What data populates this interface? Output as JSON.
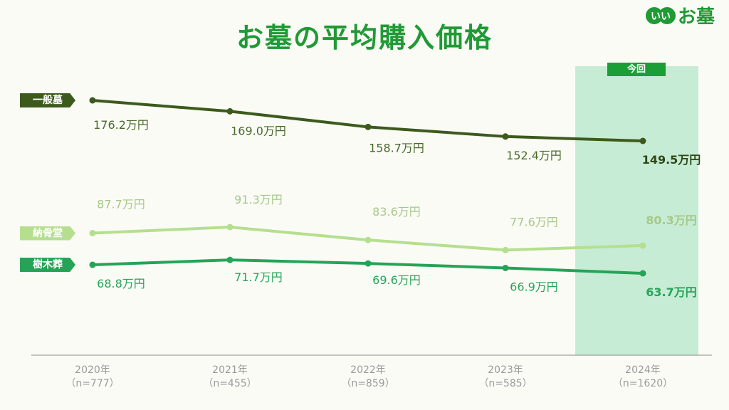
{
  "chart_data": {
    "type": "line",
    "title": "お墓の平均購入価格",
    "categories": [
      "2020年",
      "2021年",
      "2022年",
      "2023年",
      "2024年"
    ],
    "sample_sizes": [
      "（n=777）",
      "（n=455）",
      "（n=859）",
      "（n=585）",
      "（n=1620）"
    ],
    "value_unit": "万円",
    "highlight": {
      "category": "2024年",
      "label": "今回"
    },
    "grid": false,
    "series": [
      {
        "name": "一般墓",
        "values": [
          176.2,
          169.0,
          158.7,
          152.4,
          149.5
        ],
        "labels": [
          "176.2万円",
          "169.0万円",
          "158.7万円",
          "152.4万円",
          "149.5万円"
        ],
        "color": "#3d5a1d",
        "label_color": "#4a6a2b"
      },
      {
        "name": "納骨堂",
        "values": [
          87.7,
          91.3,
          83.6,
          77.6,
          80.3
        ],
        "labels": [
          "87.7万円",
          "91.3万円",
          "83.6万円",
          "77.6万円",
          "80.3万円"
        ],
        "color": "#b5df8e",
        "label_color": "#a6c987"
      },
      {
        "name": "樹木葬",
        "values": [
          68.8,
          71.7,
          69.6,
          66.9,
          63.7
        ],
        "labels": [
          "68.8万円",
          "71.7万円",
          "69.6万円",
          "66.9万円",
          "63.7万円"
        ],
        "color": "#25a457",
        "label_color": "#25a457"
      }
    ]
  },
  "brand": {
    "name": "お墓",
    "badge_text": "いい"
  },
  "colors": {
    "title": "#1f9a35",
    "highlight_band": "#c6ecd5",
    "highlight_badge": "#1c9e37",
    "axis": "#888888",
    "xlabel": "#9a9a9a"
  }
}
